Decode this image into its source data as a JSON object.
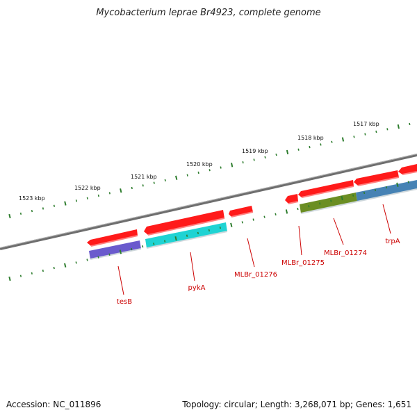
{
  "title": "Mycobacterium leprae Br4923, complete genome",
  "footer": {
    "accession": "Accession: NC_011896",
    "summary": "Topology: circular; Length: 3,268,071 bp; Genes: 1,651"
  },
  "colors": {
    "backbone": "#7a7a7a",
    "tick": "#2e7d2e",
    "gene_label": "#cc0000",
    "label_line": "#cc0000"
  },
  "kbp_labels": [
    "1523 kbp",
    "1522 kbp",
    "1521 kbp",
    "1520 kbp",
    "1519 kbp",
    "1518 kbp",
    "1517 kbp"
  ],
  "genes": [
    {
      "name": "tesB",
      "cds_color": "#ff1a1a",
      "feature_color": "#6a5acd"
    },
    {
      "name": "pykA",
      "cds_color": "#ff1a1a",
      "feature_color": "#1fd3d3"
    },
    {
      "name": "MLBr_01276",
      "cds_color": "#ff1a1a",
      "feature_color": ""
    },
    {
      "name": "MLBr_01275",
      "cds_color": "#ff1a1a",
      "feature_color": ""
    },
    {
      "name": "MLBr_01274",
      "cds_color": "#ff1a1a",
      "feature_color": "#6b8e23"
    },
    {
      "name": "trpA",
      "cds_color": "#ff1a1a",
      "feature_color": "#4682b4"
    }
  ]
}
